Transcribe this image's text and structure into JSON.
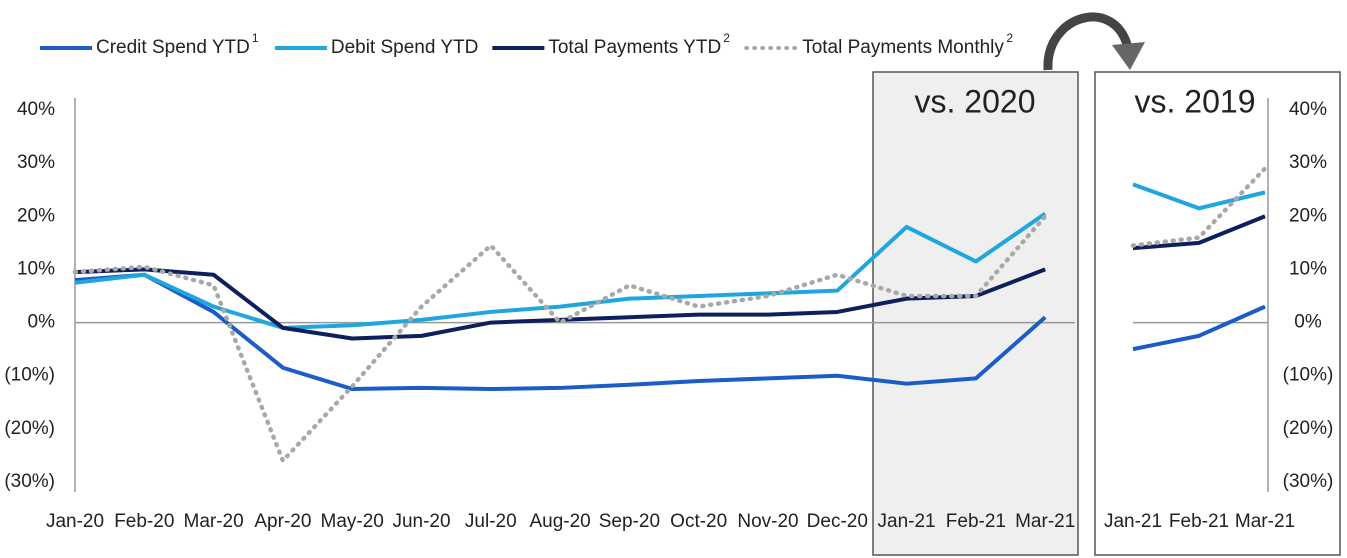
{
  "chart_data": [
    {
      "type": "line",
      "annotation": "vs. 2020",
      "categories": [
        "Jan-20",
        "Feb-20",
        "Mar-20",
        "Apr-20",
        "May-20",
        "Jun-20",
        "Jul-20",
        "Aug-20",
        "Sep-20",
        "Oct-20",
        "Nov-20",
        "Dec-20",
        "Jan-21",
        "Feb-21",
        "Mar-21"
      ],
      "series": [
        {
          "name": "Credit Spend YTD",
          "note": "1",
          "color": "#1b5cc6",
          "values": [
            8,
            9,
            2,
            -8.5,
            -12.5,
            -12.3,
            -12.5,
            -12.3,
            -11.7,
            -11,
            -10.5,
            -10,
            -11.5,
            -10.5,
            1
          ]
        },
        {
          "name": "Debit Spend YTD",
          "color": "#1fa6df",
          "values": [
            7.5,
            9,
            3,
            -1,
            -0.5,
            0.5,
            2,
            3,
            4.5,
            5,
            5.5,
            6,
            18,
            11.5,
            20.5
          ]
        },
        {
          "name": "Total Payments YTD",
          "note": "2",
          "color": "#0e1f5b",
          "values": [
            9.5,
            10,
            9,
            -1,
            -3,
            -2.5,
            0,
            0.5,
            1,
            1.5,
            1.5,
            2,
            4.5,
            5,
            10
          ]
        },
        {
          "name": "Total Payments Monthly",
          "note": "2",
          "color": "#a8a8a8",
          "dash": "dotted",
          "values": [
            9.5,
            10.5,
            7,
            -26,
            -12,
            3,
            14.5,
            0,
            7,
            3,
            5,
            9,
            5,
            5,
            20
          ]
        }
      ],
      "ylim": [
        -30,
        40
      ],
      "yticks": [
        {
          "value": -30,
          "label": "(30%)"
        },
        {
          "value": -20,
          "label": "(20%)"
        },
        {
          "value": -10,
          "label": "(10%)"
        },
        {
          "value": 0,
          "label": "0%"
        },
        {
          "value": 10,
          "label": "10%"
        },
        {
          "value": 20,
          "label": "20%"
        },
        {
          "value": 30,
          "label": "30%"
        },
        {
          "value": 40,
          "label": "40%"
        }
      ],
      "legend": "top"
    },
    {
      "type": "line",
      "annotation": "vs. 2019",
      "categories": [
        "Jan-21",
        "Feb-21",
        "Mar-21"
      ],
      "series": [
        {
          "color": "#1b5cc6",
          "values": [
            -5,
            -2.5,
            3
          ]
        },
        {
          "color": "#1fa6df",
          "values": [
            26,
            21.5,
            24.5
          ]
        },
        {
          "color": "#0e1f5b",
          "values": [
            14,
            15,
            20
          ]
        },
        {
          "color": "#a8a8a8",
          "dash": "dotted",
          "values": [
            14.5,
            16,
            29
          ]
        }
      ],
      "ylim": [
        -30,
        40
      ],
      "yticks": [
        {
          "value": -30,
          "label": "(30%)"
        },
        {
          "value": -20,
          "label": "(20%)"
        },
        {
          "value": -10,
          "label": "(10%)"
        },
        {
          "value": 0,
          "label": "0%"
        },
        {
          "value": 10,
          "label": "10%"
        },
        {
          "value": 20,
          "label": "20%"
        },
        {
          "value": 30,
          "label": "30%"
        },
        {
          "value": 40,
          "label": "40%"
        }
      ],
      "yaxis_side": "right"
    }
  ]
}
